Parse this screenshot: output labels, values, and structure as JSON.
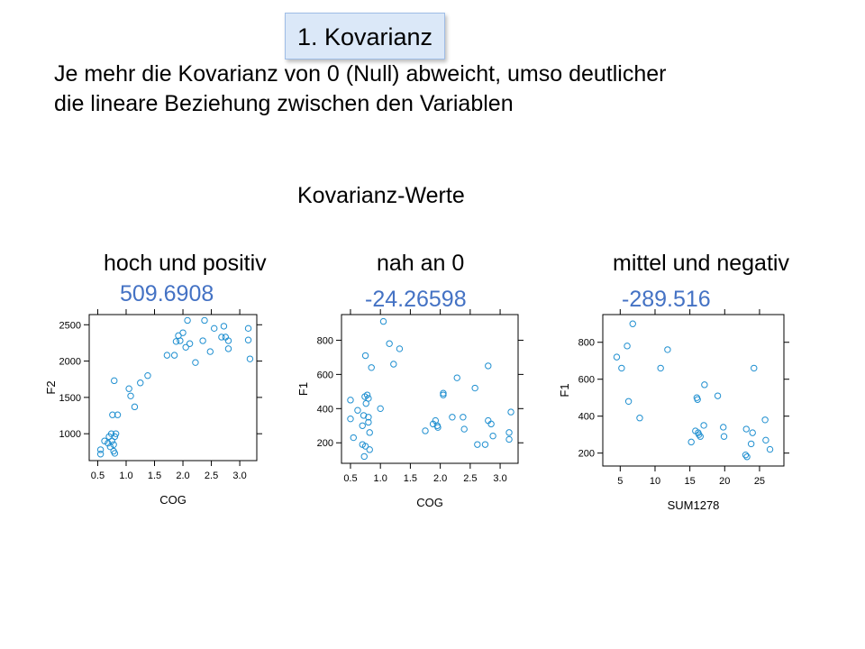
{
  "title": "1. Kovarianz",
  "intro": {
    "line1": "Je mehr die Kovarianz von 0 (Null) abweicht, umso deutlicher",
    "line2": "die lineare Beziehung zwischen den Variablen"
  },
  "section_title": "Kovarianz-Werte",
  "columns": [
    {
      "heading": "hoch und positiv",
      "covariance": "509.6908"
    },
    {
      "heading": "nah an 0",
      "covariance": "-24.26598"
    },
    {
      "heading": "mittel und negativ",
      "covariance": "-289.516"
    }
  ],
  "colors": {
    "points": "#1f8fd0",
    "covariance_text": "#4472c4",
    "title_box_bg": "#dbe8f8"
  },
  "chart_data": [
    {
      "type": "scatter",
      "xlabel": "COG",
      "ylabel": "F2",
      "xlim": [
        0.35,
        3.3
      ],
      "ylim": [
        630,
        2640
      ],
      "xticks": [
        0.5,
        1.0,
        1.5,
        2.0,
        2.5,
        3.0
      ],
      "xtick_labels": [
        "0.5",
        "1.0",
        "1.5",
        "2.0",
        "2.5",
        "3.0"
      ],
      "yticks": [
        1000,
        1500,
        2000,
        2500
      ],
      "ytick_labels": [
        "1000",
        "1500",
        "2000",
        "2500"
      ],
      "points": [
        [
          0.55,
          780
        ],
        [
          0.55,
          720
        ],
        [
          0.62,
          900
        ],
        [
          0.68,
          870
        ],
        [
          0.7,
          960
        ],
        [
          0.72,
          820
        ],
        [
          0.74,
          1000
        ],
        [
          0.75,
          900
        ],
        [
          0.76,
          1260
        ],
        [
          0.78,
          850
        ],
        [
          0.78,
          760
        ],
        [
          0.8,
          960
        ],
        [
          0.8,
          730
        ],
        [
          0.82,
          1000
        ],
        [
          0.85,
          1260
        ],
        [
          0.79,
          1730
        ],
        [
          1.05,
          1620
        ],
        [
          1.08,
          1520
        ],
        [
          1.15,
          1370
        ],
        [
          1.25,
          1700
        ],
        [
          1.38,
          1800
        ],
        [
          1.72,
          2080
        ],
        [
          1.85,
          2080
        ],
        [
          1.88,
          2270
        ],
        [
          1.92,
          2350
        ],
        [
          1.95,
          2280
        ],
        [
          2.0,
          2390
        ],
        [
          2.05,
          2190
        ],
        [
          2.08,
          2560
        ],
        [
          2.12,
          2240
        ],
        [
          2.22,
          1980
        ],
        [
          2.35,
          2280
        ],
        [
          2.38,
          2560
        ],
        [
          2.48,
          2130
        ],
        [
          2.55,
          2450
        ],
        [
          2.68,
          2330
        ],
        [
          2.72,
          2480
        ],
        [
          2.75,
          2330
        ],
        [
          2.8,
          2280
        ],
        [
          2.8,
          2170
        ],
        [
          3.15,
          2450
        ],
        [
          3.15,
          2290
        ],
        [
          3.18,
          2030
        ]
      ]
    },
    {
      "type": "scatter",
      "xlabel": "COG",
      "ylabel": "F1",
      "xlim": [
        0.35,
        3.3
      ],
      "ylim": [
        80,
        950
      ],
      "xticks": [
        0.5,
        1.0,
        1.5,
        2.0,
        2.5,
        3.0
      ],
      "xtick_labels": [
        "0.5",
        "1.0",
        "1.5",
        "2.0",
        "2.5",
        "3.0"
      ],
      "yticks": [
        200,
        400,
        600,
        800
      ],
      "ytick_labels": [
        "200",
        "400",
        "600",
        "800"
      ],
      "points": [
        [
          0.5,
          450
        ],
        [
          0.5,
          340
        ],
        [
          0.55,
          230
        ],
        [
          0.62,
          390
        ],
        [
          0.7,
          300
        ],
        [
          0.7,
          190
        ],
        [
          0.72,
          360
        ],
        [
          0.73,
          120
        ],
        [
          0.74,
          470
        ],
        [
          0.75,
          180
        ],
        [
          0.75,
          710
        ],
        [
          0.76,
          430
        ],
        [
          0.78,
          480
        ],
        [
          0.8,
          460
        ],
        [
          0.8,
          350
        ],
        [
          0.8,
          320
        ],
        [
          0.82,
          260
        ],
        [
          0.82,
          160
        ],
        [
          0.85,
          640
        ],
        [
          1.05,
          910
        ],
        [
          1.0,
          400
        ],
        [
          1.15,
          780
        ],
        [
          1.22,
          660
        ],
        [
          1.32,
          750
        ],
        [
          1.75,
          270
        ],
        [
          1.88,
          310
        ],
        [
          1.92,
          330
        ],
        [
          1.95,
          300
        ],
        [
          1.96,
          290
        ],
        [
          2.05,
          490
        ],
        [
          2.05,
          480
        ],
        [
          2.2,
          350
        ],
        [
          2.28,
          580
        ],
        [
          2.38,
          350
        ],
        [
          2.4,
          280
        ],
        [
          2.58,
          520
        ],
        [
          2.62,
          190
        ],
        [
          2.75,
          190
        ],
        [
          2.8,
          650
        ],
        [
          2.8,
          330
        ],
        [
          2.85,
          310
        ],
        [
          2.88,
          240
        ],
        [
          3.18,
          380
        ],
        [
          3.15,
          260
        ],
        [
          3.15,
          220
        ]
      ]
    },
    {
      "type": "scatter",
      "xlabel": "SUM1278",
      "ylabel": "F1",
      "xlim": [
        2.5,
        28.5
      ],
      "ylim": [
        130,
        950
      ],
      "xticks": [
        5,
        10,
        15,
        20,
        25
      ],
      "xtick_labels": [
        "5",
        "10",
        "15",
        "20",
        "25"
      ],
      "yticks": [
        200,
        400,
        600,
        800
      ],
      "ytick_labels": [
        "200",
        "400",
        "600",
        "800"
      ],
      "points": [
        [
          4.5,
          720
        ],
        [
          5.2,
          660
        ],
        [
          6,
          780
        ],
        [
          6.2,
          480
        ],
        [
          6.8,
          900
        ],
        [
          7.8,
          390
        ],
        [
          10.8,
          660
        ],
        [
          11.8,
          760
        ],
        [
          15.2,
          260
        ],
        [
          15.8,
          320
        ],
        [
          16,
          500
        ],
        [
          16.1,
          490
        ],
        [
          16.2,
          310
        ],
        [
          16.3,
          300
        ],
        [
          16.5,
          290
        ],
        [
          17,
          350
        ],
        [
          17.1,
          570
        ],
        [
          19,
          510
        ],
        [
          19.8,
          340
        ],
        [
          19.9,
          290
        ],
        [
          23,
          190
        ],
        [
          23.1,
          330
        ],
        [
          23.2,
          180
        ],
        [
          23.8,
          250
        ],
        [
          24,
          310
        ],
        [
          24.2,
          660
        ],
        [
          25.8,
          380
        ],
        [
          25.9,
          270
        ],
        [
          26.5,
          220
        ]
      ]
    }
  ]
}
